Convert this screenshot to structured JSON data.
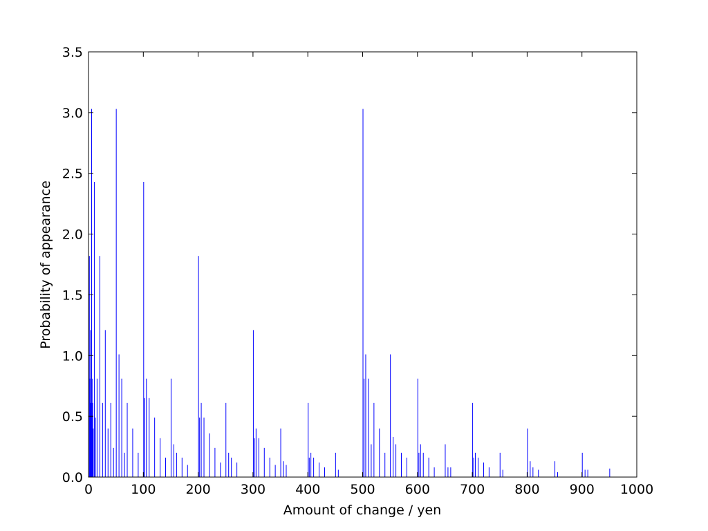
{
  "chart_data": {
    "type": "bar",
    "xlabel": "Amount of change / yen",
    "ylabel": "Probability of appearance",
    "color": "#0000ff",
    "x": [
      1,
      2,
      3,
      4,
      5,
      6,
      7,
      8,
      10,
      12,
      15,
      20,
      25,
      30,
      35,
      40,
      45,
      50,
      55,
      60,
      65,
      70,
      80,
      90,
      100,
      102,
      105,
      110,
      120,
      130,
      140,
      150,
      155,
      160,
      170,
      180,
      200,
      202,
      205,
      210,
      220,
      230,
      240,
      250,
      255,
      260,
      270,
      300,
      302,
      305,
      310,
      320,
      330,
      340,
      350,
      355,
      360,
      400,
      402,
      405,
      410,
      420,
      430,
      450,
      455,
      500,
      502,
      505,
      510,
      515,
      520,
      530,
      540,
      550,
      555,
      560,
      570,
      580,
      600,
      602,
      605,
      610,
      620,
      630,
      650,
      655,
      660,
      700,
      702,
      705,
      710,
      720,
      730,
      750,
      755,
      800,
      805,
      810,
      820,
      850,
      855,
      900,
      905,
      910,
      950
    ],
    "values": [
      1.82,
      0.81,
      1.21,
      0.61,
      3.03,
      0.81,
      0.61,
      0.4,
      2.43,
      0.49,
      0.81,
      1.82,
      0.61,
      1.21,
      0.4,
      0.61,
      0.24,
      3.03,
      1.01,
      0.81,
      0.2,
      0.61,
      0.4,
      0.2,
      2.43,
      0.65,
      0.81,
      0.65,
      0.49,
      0.32,
      0.16,
      0.81,
      0.27,
      0.2,
      0.16,
      0.1,
      1.82,
      0.49,
      0.61,
      0.49,
      0.36,
      0.24,
      0.12,
      0.61,
      0.2,
      0.16,
      0.12,
      1.21,
      0.32,
      0.4,
      0.32,
      0.24,
      0.16,
      0.1,
      0.4,
      0.13,
      0.1,
      0.61,
      0.16,
      0.2,
      0.16,
      0.12,
      0.08,
      0.2,
      0.06,
      3.03,
      0.81,
      1.01,
      0.81,
      0.27,
      0.61,
      0.4,
      0.2,
      1.01,
      0.33,
      0.27,
      0.2,
      0.16,
      0.81,
      0.2,
      0.27,
      0.2,
      0.16,
      0.08,
      0.27,
      0.08,
      0.08,
      0.61,
      0.16,
      0.2,
      0.16,
      0.12,
      0.08,
      0.2,
      0.06,
      0.4,
      0.13,
      0.08,
      0.06,
      0.13,
      0.04,
      0.2,
      0.06,
      0.06,
      0.07
    ],
    "xlim": [
      0,
      1000
    ],
    "xticks": [
      0,
      100,
      200,
      300,
      400,
      500,
      600,
      700,
      800,
      900,
      1000
    ],
    "ylim": [
      0,
      3.5
    ],
    "yticks": [
      {
        "value": 0,
        "label": "0.0"
      },
      0.5,
      {
        "value": 1,
        "label": "1.0"
      },
      1.5,
      {
        "value": 2,
        "label": "2.0"
      },
      2.5,
      {
        "value": 3,
        "label": "3.0"
      },
      3.5
    ]
  }
}
